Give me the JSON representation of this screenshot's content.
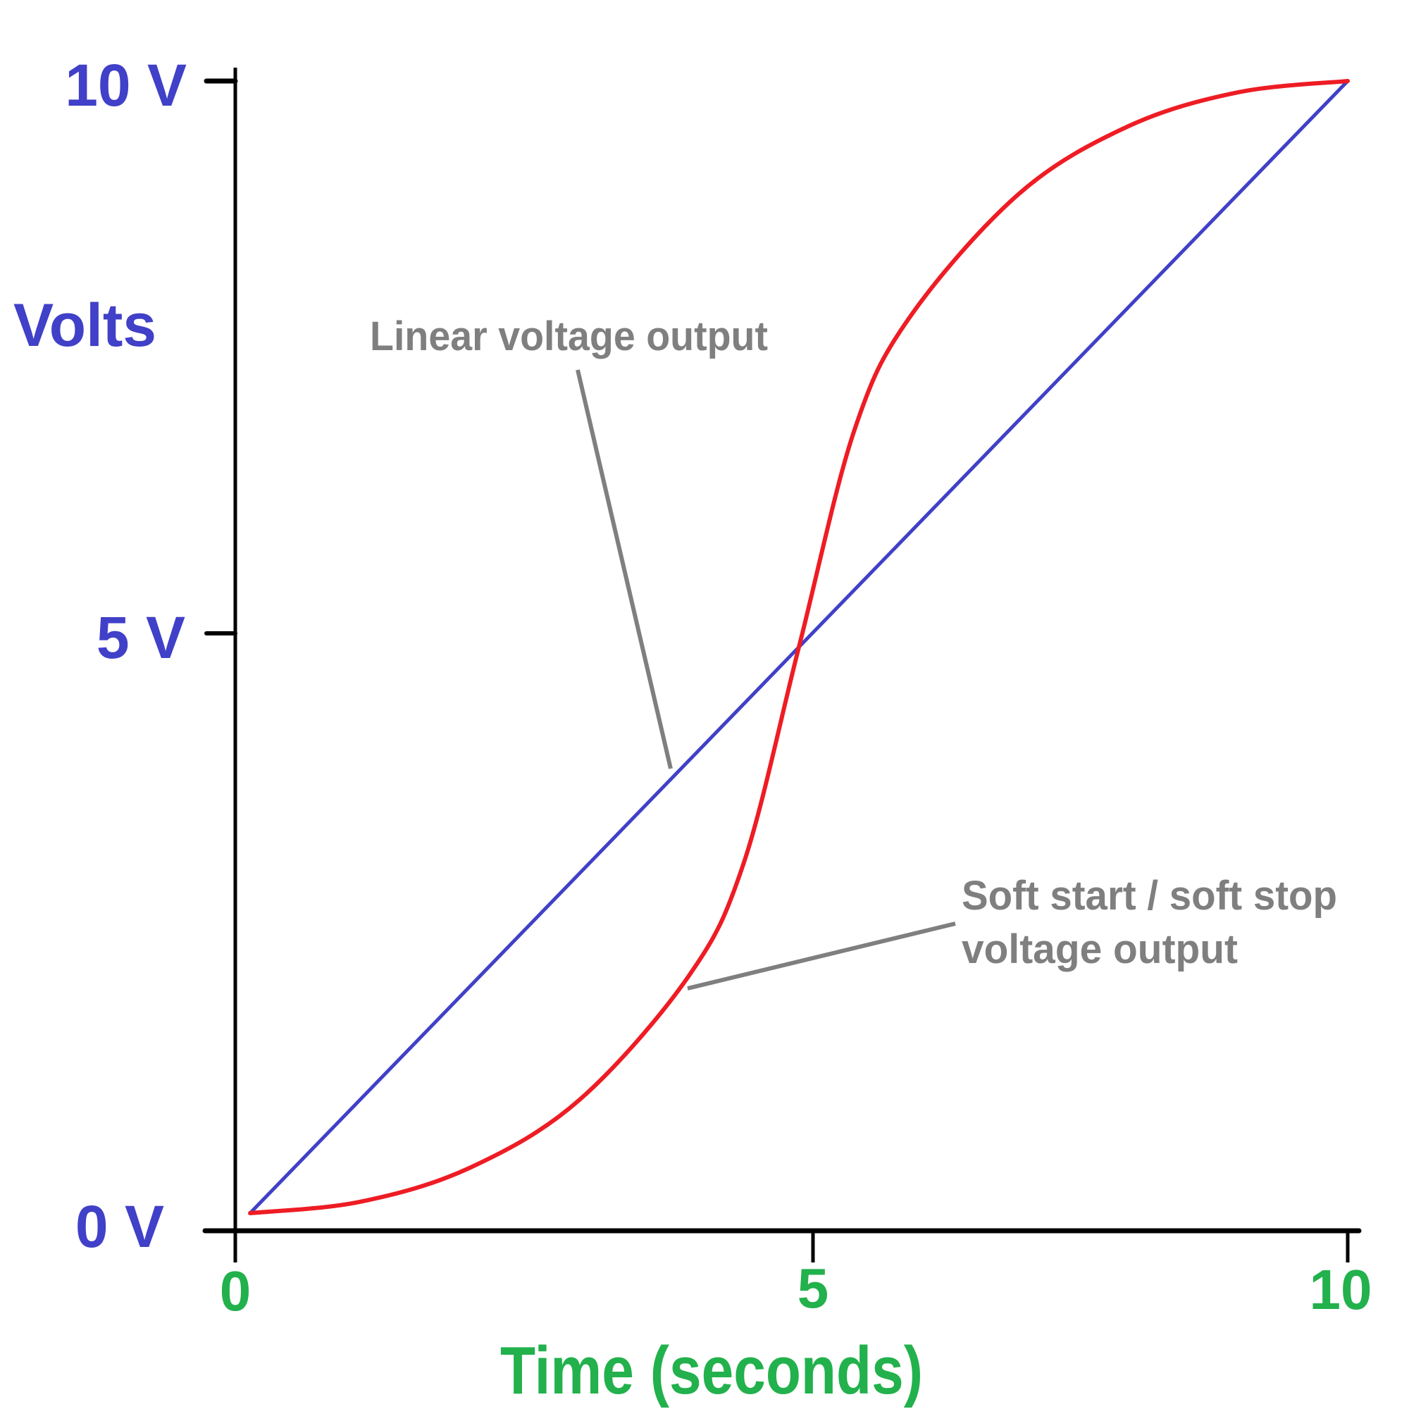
{
  "colors": {
    "linear": "#4040c8",
    "soft": "#ee1c24",
    "y_labels": "#4040c8",
    "x_labels": "#22b14c",
    "annotations": "#7f7f7f",
    "axes": "#000000"
  },
  "chart_data": {
    "type": "line",
    "title": "",
    "xlabel": "Time (seconds)",
    "ylabel": "Volts",
    "xlim": [
      0,
      10
    ],
    "ylim": [
      0,
      10
    ],
    "grid": false,
    "x_ticks": [
      {
        "value": 0,
        "label": "0"
      },
      {
        "value": 5,
        "label": "5"
      },
      {
        "value": 10,
        "label": "10"
      }
    ],
    "y_ticks": [
      {
        "value": 0,
        "label": "0 V"
      },
      {
        "value": 5,
        "label": "5 V"
      },
      {
        "value": 10,
        "label": "10 V"
      }
    ],
    "series": [
      {
        "key": "linear",
        "x": [
          0,
          10
        ],
        "y": [
          0,
          10
        ]
      },
      {
        "key": "soft",
        "x": [
          0,
          1,
          2,
          3,
          4,
          4.5,
          5,
          5.5,
          6,
          7,
          8,
          9,
          10
        ],
        "y": [
          0,
          0.1,
          0.4,
          1.0,
          2.1,
          3.1,
          5.0,
          6.9,
          7.9,
          9.0,
          9.6,
          9.9,
          10
        ]
      }
    ],
    "annotations": [
      {
        "series": "linear",
        "lines": [
          "Linear voltage output"
        ]
      },
      {
        "series": "soft",
        "lines": [
          "Soft start / soft stop",
          "voltage output"
        ]
      }
    ]
  }
}
